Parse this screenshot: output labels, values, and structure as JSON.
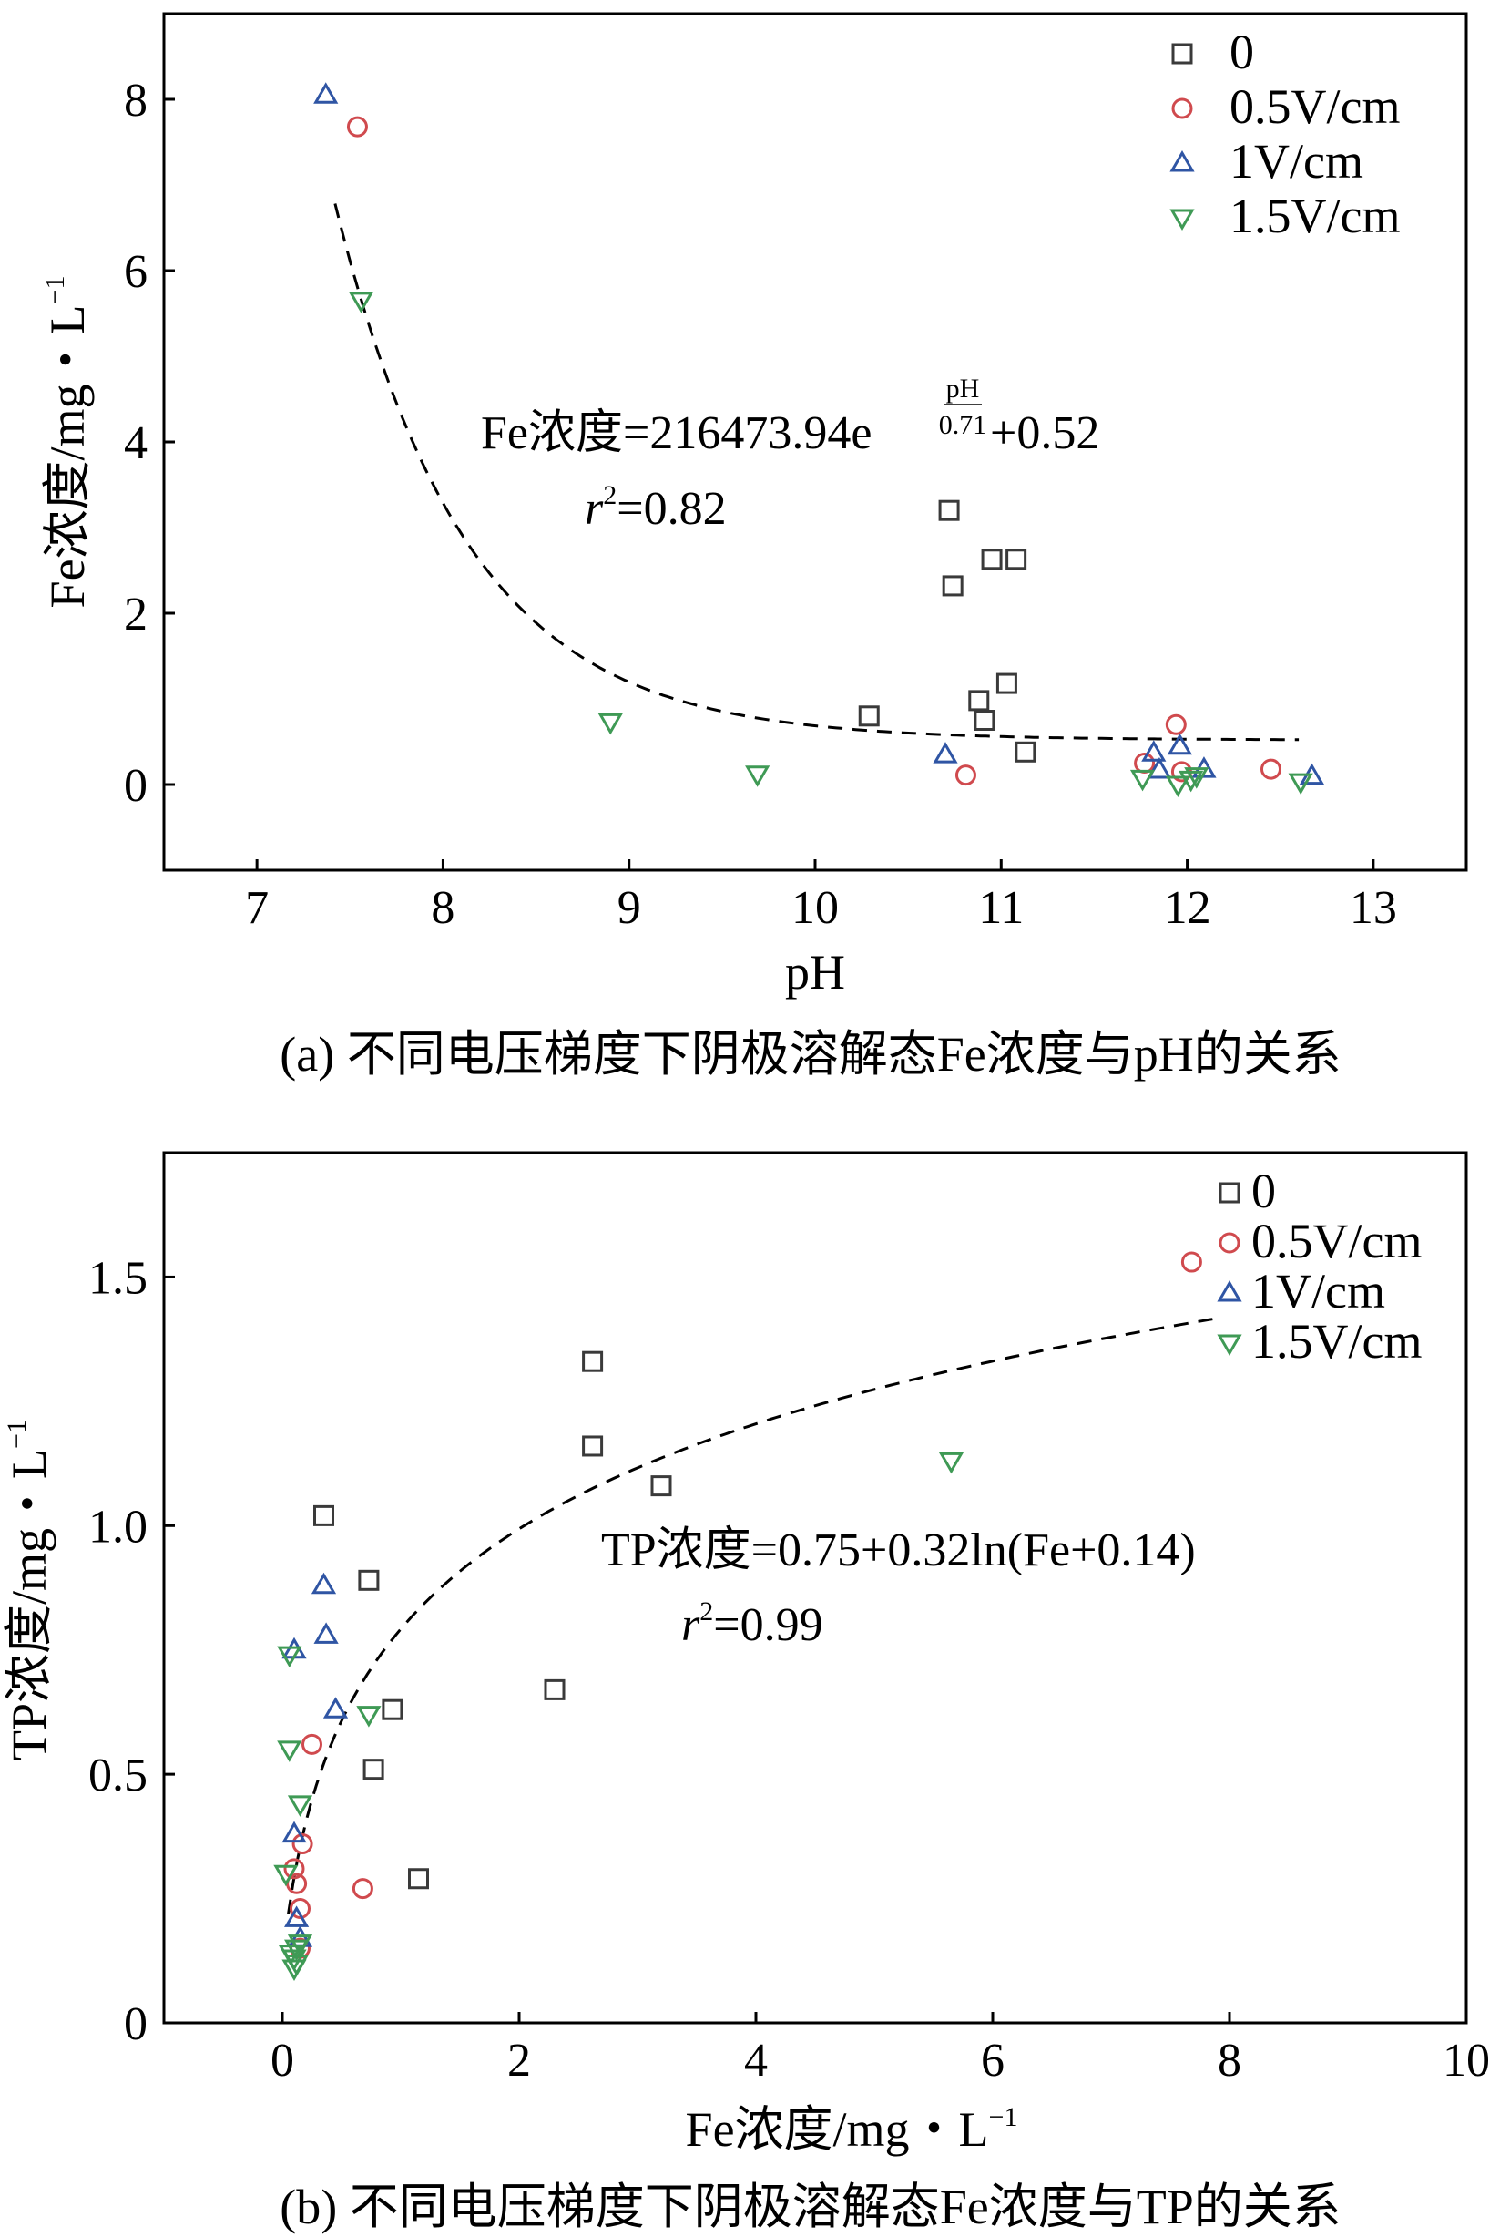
{
  "colors": {
    "s0": "#3a3a3a",
    "s05": "#d04a4e",
    "s1": "#2f55a4",
    "s15": "#3f9a55"
  },
  "chart_data": [
    {
      "type": "scatter",
      "title": "",
      "caption": "(a) 不同电压梯度下阴极溶解态Fe浓度与pH的关系",
      "xlabel": "pH",
      "ylabel": "Fe浓度/mg・L",
      "ylabel_sup": "−1",
      "xlim": [
        6.5,
        13.5
      ],
      "ylim": [
        -1,
        9
      ],
      "xticks": [
        7,
        8,
        9,
        10,
        11,
        12,
        13
      ],
      "yticks": [
        0,
        2,
        4,
        6,
        8
      ],
      "legend": [
        "0",
        "0.5V/cm",
        "1V/cm",
        "1.5V/cm"
      ],
      "legend_position": "top-right",
      "series": [
        {
          "name": "0",
          "marker": "square",
          "x": [
            10.29,
            10.72,
            10.74,
            10.95,
            11.08,
            10.88,
            10.91,
            11.03,
            11.13
          ],
          "y": [
            0.8,
            3.2,
            2.32,
            2.63,
            2.63,
            0.98,
            0.75,
            1.18,
            0.38
          ]
        },
        {
          "name": "0.5V/cm",
          "marker": "circle",
          "x": [
            7.54,
            10.81,
            11.77,
            11.94,
            11.97,
            12.45
          ],
          "y": [
            7.68,
            0.11,
            0.25,
            0.7,
            0.15,
            0.18
          ]
        },
        {
          "name": "1V/cm",
          "marker": "triangle-up",
          "x": [
            7.37,
            10.7,
            11.82,
            11.85,
            11.96,
            12.09,
            12.67
          ],
          "y": [
            8.05,
            0.35,
            0.37,
            0.17,
            0.45,
            0.18,
            0.1
          ]
        },
        {
          "name": "1.5V/cm",
          "marker": "triangle-down",
          "x": [
            7.56,
            8.9,
            9.69,
            11.76,
            11.95,
            12.02,
            12.05,
            12.61
          ],
          "y": [
            5.65,
            0.73,
            0.12,
            0.07,
            0.0,
            0.06,
            0.1,
            0.03
          ]
        }
      ],
      "fit_line": {
        "style": "dashed",
        "x_range": [
          7.42,
          12.6
        ]
      },
      "annotation": {
        "prefix": "Fe浓度=216473.94e",
        "exp_num": "pH",
        "exp_den": "0.71",
        "suffix": "+0.52",
        "r_label": "r",
        "r_sup": "2",
        "r_value": "=0.82"
      }
    },
    {
      "type": "scatter",
      "title": "",
      "caption": "(b) 不同电压梯度下阴极溶解态Fe浓度与TP的关系",
      "xlabel": "Fe浓度/mg・L",
      "xlabel_sup": "−1",
      "ylabel": "TP浓度/mg・L",
      "ylabel_sup": "−1",
      "xlim": [
        -1,
        10
      ],
      "ylim": [
        0,
        1.75
      ],
      "xticks": [
        0,
        2,
        4,
        6,
        8,
        10
      ],
      "yticks": [
        0,
        0.5,
        1.0,
        1.5
      ],
      "ytick_labels": [
        "0",
        "0.5",
        "1.0",
        "1.5"
      ],
      "legend": [
        "0",
        "0.5V/cm",
        "1V/cm",
        "1.5V/cm"
      ],
      "legend_position": "top-right",
      "series": [
        {
          "name": "0",
          "marker": "square",
          "x": [
            0.35,
            0.73,
            0.77,
            0.93,
            1.15,
            2.3,
            2.62,
            2.62,
            3.2
          ],
          "y": [
            1.02,
            0.89,
            0.51,
            0.63,
            0.29,
            0.67,
            1.33,
            1.16,
            1.08
          ]
        },
        {
          "name": "0.5V/cm",
          "marker": "circle",
          "x": [
            0.1,
            0.12,
            0.15,
            0.15,
            0.17,
            0.25,
            0.68,
            7.68
          ],
          "y": [
            0.31,
            0.28,
            0.23,
            0.15,
            0.36,
            0.56,
            0.27,
            1.53
          ]
        },
        {
          "name": "1V/cm",
          "marker": "triangle-up",
          "x": [
            0.1,
            0.1,
            0.12,
            0.15,
            0.35,
            0.37,
            0.45
          ],
          "y": [
            0.75,
            0.38,
            0.21,
            0.17,
            0.88,
            0.78,
            0.63
          ]
        },
        {
          "name": "1.5V/cm",
          "marker": "triangle-down",
          "x": [
            0.03,
            0.06,
            0.06,
            0.07,
            0.1,
            0.1,
            0.12,
            0.12,
            0.15,
            0.15,
            0.73,
            5.65
          ],
          "y": [
            0.3,
            0.55,
            0.74,
            0.14,
            0.11,
            0.13,
            0.12,
            0.15,
            0.16,
            0.44,
            0.62,
            1.13
          ]
        }
      ],
      "fit_line": {
        "style": "dashed",
        "x_range": [
          0.05,
          7.9
        ]
      },
      "annotation": {
        "prefix": "TP浓度=0.75+0.32ln(Fe+0.14)",
        "r_label": "r",
        "r_sup": "2",
        "r_value": "=0.99"
      }
    }
  ]
}
